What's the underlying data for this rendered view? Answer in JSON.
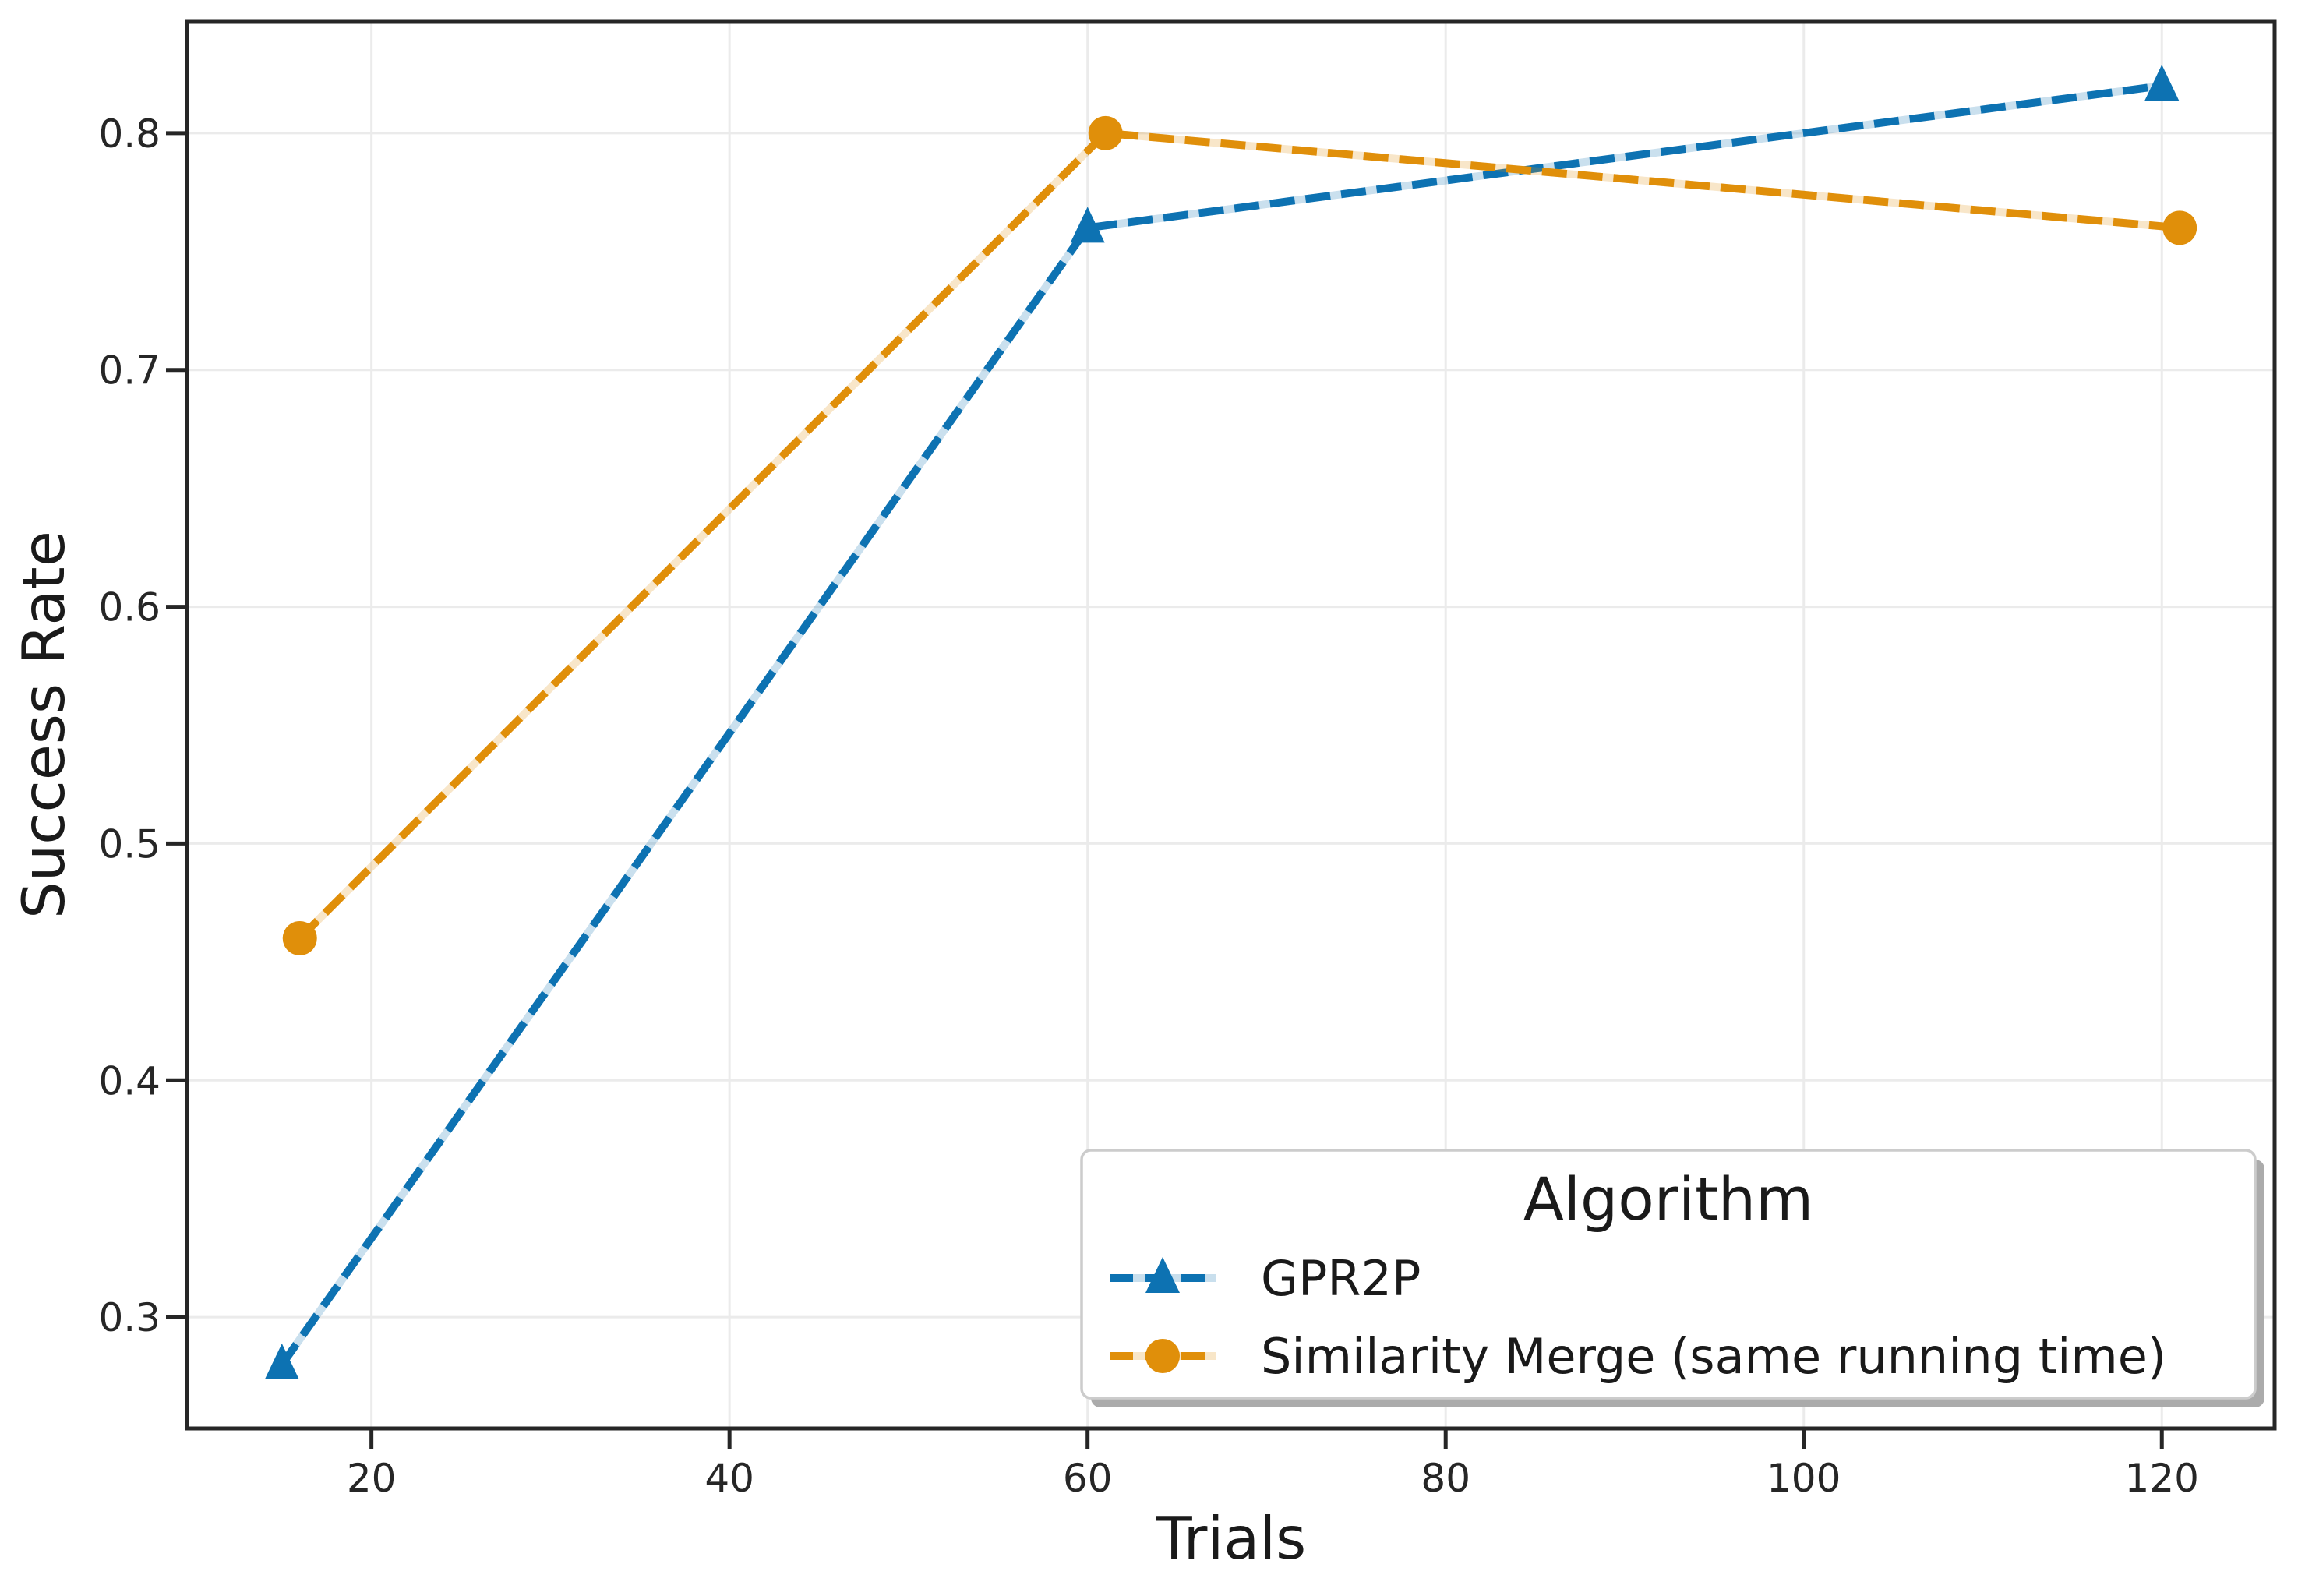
{
  "chart_data": {
    "type": "line",
    "title": "",
    "xlabel": "Trials",
    "ylabel": "Success Rate",
    "xlim": [
      9.7,
      126.3
    ],
    "ylim": [
      0.253,
      0.847
    ],
    "xticks": [
      20,
      40,
      60,
      80,
      100,
      120
    ],
    "yticks": [
      0.3,
      0.4,
      0.5,
      0.6,
      0.7,
      0.8
    ],
    "ytick_decimals": 1,
    "grid": true,
    "legend": {
      "title": "Algorithm",
      "position": "lower right"
    },
    "series": [
      {
        "name": "GPR2P",
        "color": "#0d72b2",
        "marker": "triangle",
        "linestyle": "dashed",
        "x": [
          15,
          60,
          120
        ],
        "y": [
          0.28,
          0.76,
          0.82
        ]
      },
      {
        "name": "Similarity Merge (same running time)",
        "color": "#e08f0a",
        "marker": "circle",
        "linestyle": "dashed",
        "x": [
          16,
          61,
          121
        ],
        "y": [
          0.46,
          0.8,
          0.76
        ]
      }
    ]
  }
}
